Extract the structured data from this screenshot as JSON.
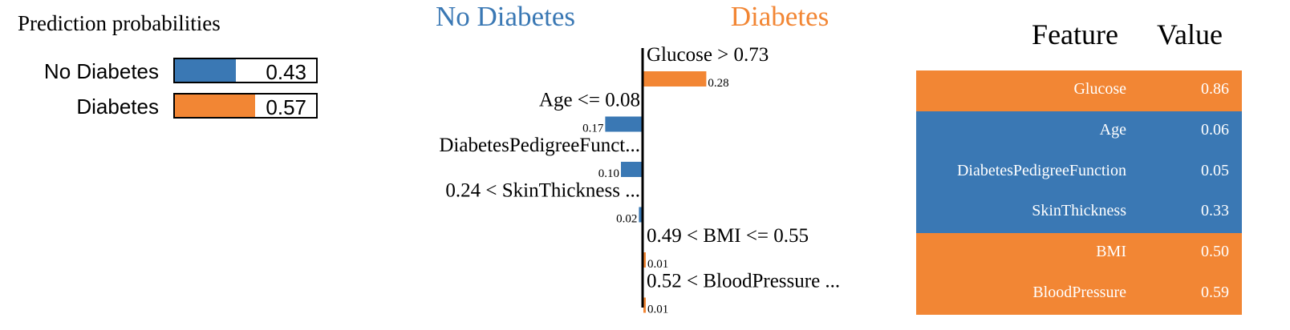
{
  "colors": {
    "negative": "#3a78b4",
    "positive": "#f28634"
  },
  "prediction": {
    "title": "Prediction probabilities",
    "items": [
      {
        "label": "No Diabetes",
        "value": 0.43,
        "display": "0.43",
        "color": "#3a78b4"
      },
      {
        "label": "Diabetes",
        "value": 0.57,
        "display": "0.57",
        "color": "#f28634"
      }
    ]
  },
  "explanation": {
    "negative_title": "No Diabetes",
    "positive_title": "Diabetes"
  },
  "chart_data": {
    "type": "bar",
    "title": "",
    "categories": [
      "Glucose > 0.73",
      "Age <= 0.08",
      "DiabetesPedigreeFunct...",
      "0.24 < SkinThickness ...",
      "0.49 < BMI <= 0.55",
      "0.52 < BloodPressure ..."
    ],
    "values": [
      0.28,
      -0.17,
      -0.1,
      -0.02,
      0.01,
      0.01
    ],
    "value_labels": [
      "0.28",
      "0.17",
      "0.10",
      "0.02",
      "0.01",
      "0.01"
    ],
    "orientation": "horizontal"
  },
  "feature_table": {
    "headers": {
      "feature": "Feature",
      "value": "Value"
    },
    "rows": [
      {
        "feature": "Glucose",
        "value": "0.86",
        "class": "positive"
      },
      {
        "feature": "Age",
        "value": "0.06",
        "class": "negative"
      },
      {
        "feature": "DiabetesPedigreeFunction",
        "value": "0.05",
        "class": "negative"
      },
      {
        "feature": "SkinThickness",
        "value": "0.33",
        "class": "negative"
      },
      {
        "feature": "BMI",
        "value": "0.50",
        "class": "positive"
      },
      {
        "feature": "BloodPressure",
        "value": "0.59",
        "class": "positive"
      }
    ]
  }
}
